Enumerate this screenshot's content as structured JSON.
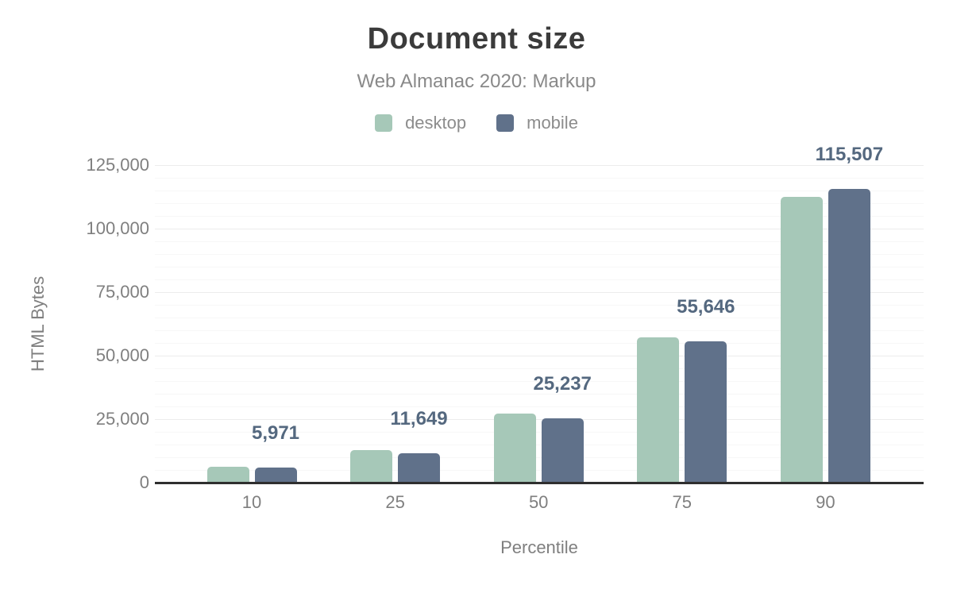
{
  "figure": {
    "title": "Document size",
    "subtitle": "Web Almanac 2020: Markup"
  },
  "colors": {
    "desktop": "#a6c8b8",
    "mobile": "#60718a",
    "annotation": "#54687f",
    "title": "#3b3b3b",
    "axis_text": "#7f7f7f",
    "axis_line": "#2f2f2f"
  },
  "chart_data": {
    "type": "bar",
    "title": "Document size",
    "subtitle": "Web Almanac 2020: Markup",
    "xlabel": "Percentile",
    "ylabel": "HTML Bytes",
    "categories": [
      "10",
      "25",
      "50",
      "75",
      "90"
    ],
    "series": [
      {
        "name": "desktop",
        "color": "#a6c8b8",
        "values": [
          6300,
          12900,
          27100,
          57200,
          112400
        ]
      },
      {
        "name": "mobile",
        "color": "#60718a",
        "values": [
          5971,
          11649,
          25237,
          55646,
          115507
        ]
      }
    ],
    "annotations": {
      "series": "mobile",
      "labels": [
        "5,971",
        "11,649",
        "25,237",
        "55,646",
        "115,507"
      ]
    },
    "ylim": [
      0,
      125000
    ],
    "yticks": [
      "0",
      "25,000",
      "50,000",
      "75,000",
      "100,000",
      "125,000"
    ],
    "grid": {
      "major_step": 25000,
      "minor_step": 5000,
      "visible": true
    },
    "legend_position": "top"
  }
}
